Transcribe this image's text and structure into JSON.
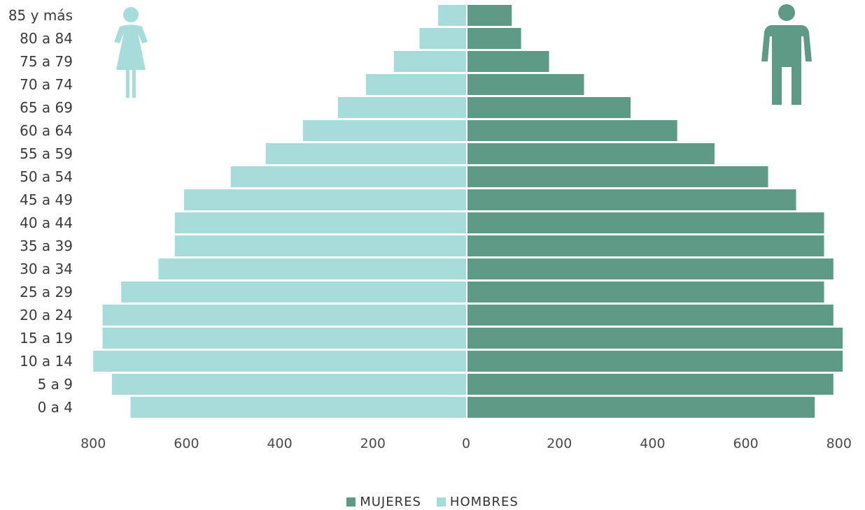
{
  "chart_data": {
    "type": "bar",
    "orientation": "population-pyramid",
    "categories": [
      "85 y más",
      "80 a 84",
      "75 a 79",
      "70 a 74",
      "65 a 69",
      "60 a 64",
      "55 a 59",
      "50 a 54",
      "45 a 49",
      "40 a 44",
      "35 a 39",
      "30 a 34",
      "25 a 29",
      "20 a 24",
      "15 a 19",
      "10 a 14",
      "5 a 9",
      "0 a 4"
    ],
    "series": [
      {
        "name": "HOMBRES",
        "side": "left",
        "color": "#a8dcda",
        "values": [
          60,
          100,
          155,
          215,
          275,
          350,
          430,
          505,
          605,
          625,
          625,
          660,
          740,
          780,
          780,
          800,
          760,
          720
        ]
      },
      {
        "name": "MUJERES",
        "side": "right",
        "color": "#5f9a86",
        "values": [
          95,
          115,
          175,
          250,
          350,
          450,
          530,
          645,
          705,
          765,
          765,
          785,
          765,
          785,
          805,
          805,
          785,
          745
        ]
      }
    ],
    "xlim": [
      -800,
      800
    ],
    "ticks": [
      "800",
      "600",
      "400",
      "200",
      "0",
      "200",
      "400",
      "600",
      "800"
    ],
    "tick_values": [
      -800,
      -600,
      -400,
      -200,
      0,
      200,
      400,
      600,
      800
    ],
    "legend": [
      "MUJERES",
      "HOMBRES"
    ],
    "legend_position": "bottom",
    "icons": {
      "left": "female-icon",
      "right": "male-icon"
    },
    "grid": false
  }
}
